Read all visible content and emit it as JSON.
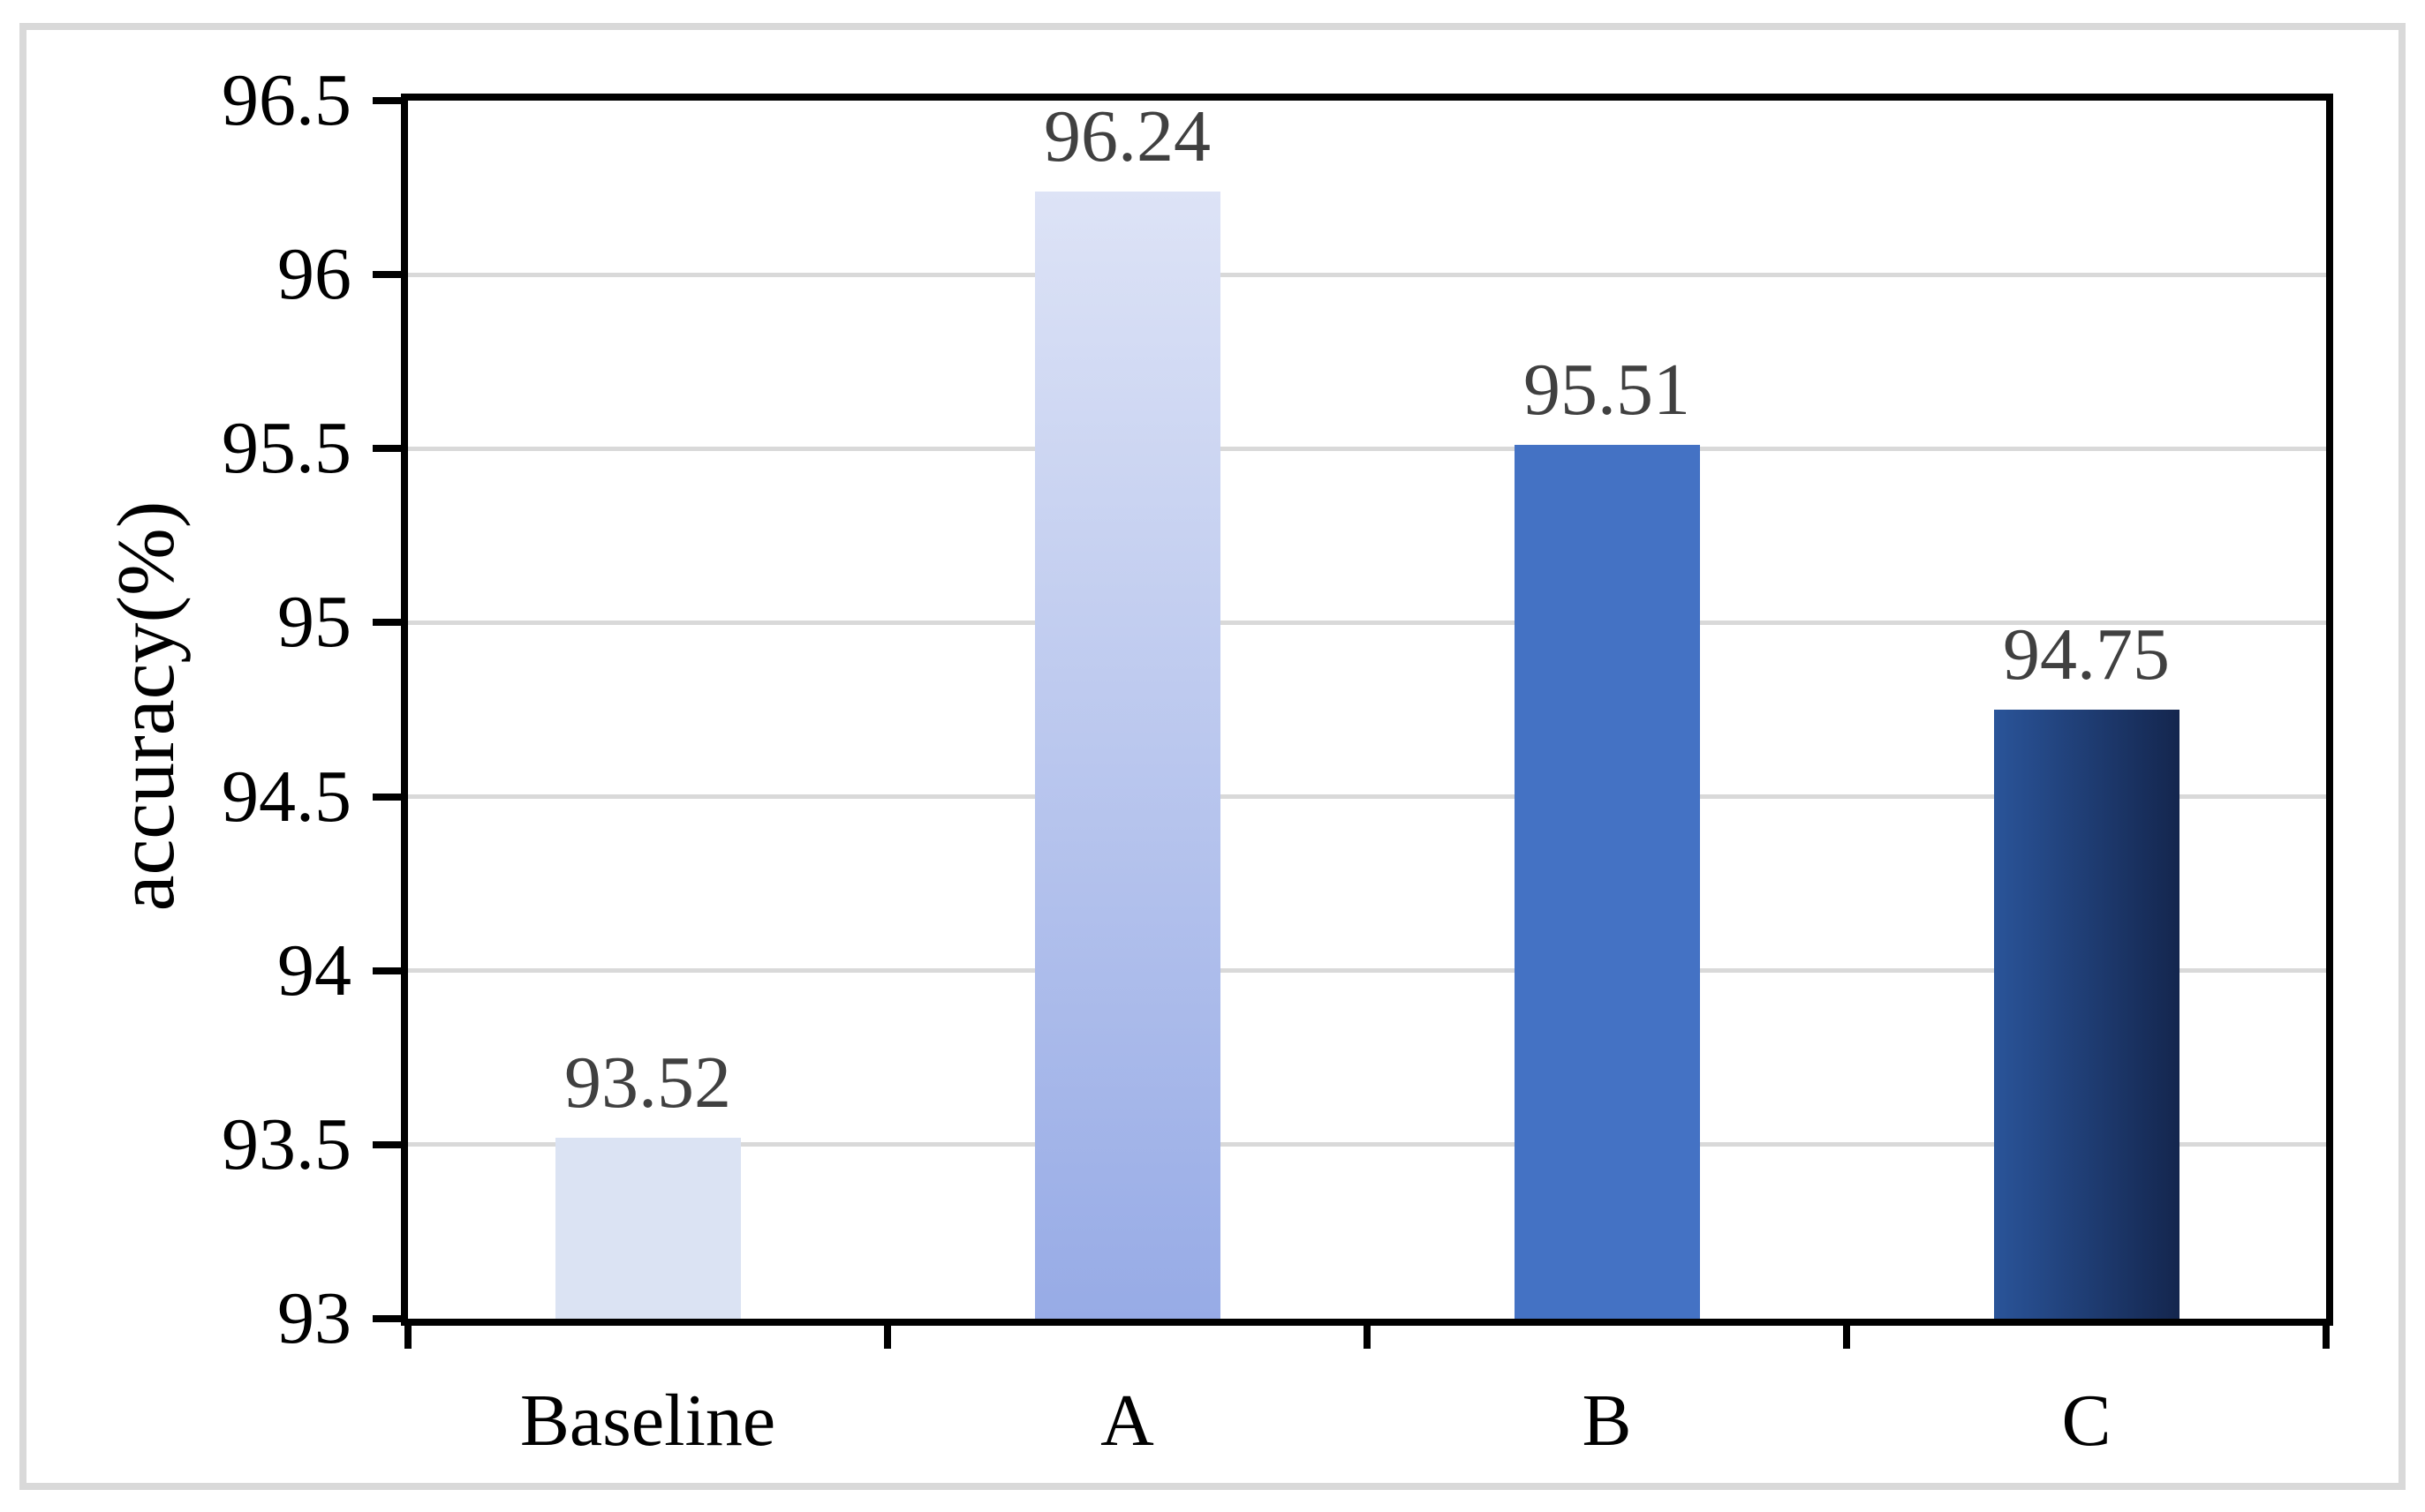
{
  "chart_data": {
    "type": "bar",
    "title": "",
    "categories": [
      "Baseline",
      "A",
      "B",
      "C"
    ],
    "values": [
      93.52,
      96.24,
      95.51,
      94.75
    ],
    "data_labels": [
      "93.52",
      "96.24",
      "95.51",
      "94.75"
    ],
    "xlabel": "",
    "ylabel": "accuracy(%)",
    "ylim": [
      93,
      96.5
    ],
    "ytick_step": 0.5,
    "ytick_labels": [
      "93",
      "93.5",
      "94",
      "94.5",
      "95",
      "95.5",
      "96",
      "96.5"
    ],
    "grid": "horizontal-only",
    "legend": "none",
    "bar_styles": [
      {
        "name": "baseline-bar",
        "fill": "solid",
        "color": "#dbe3f3"
      },
      {
        "name": "a-bar",
        "fill": "vertical-gradient",
        "color_top": "#dde3f6",
        "color_bottom": "#97abe6"
      },
      {
        "name": "b-bar",
        "fill": "solid",
        "color": "#4472c4"
      },
      {
        "name": "c-bar",
        "fill": "horizontal-gradient",
        "color_left": "#2a5499",
        "color_right": "#14264e"
      }
    ],
    "colors": {
      "axis": "#000000",
      "gridline": "#d9d9d9",
      "outer_frame": "#d9d9d9",
      "data_label": "#404040",
      "tick_label": "#000000",
      "background": "#ffffff"
    }
  }
}
